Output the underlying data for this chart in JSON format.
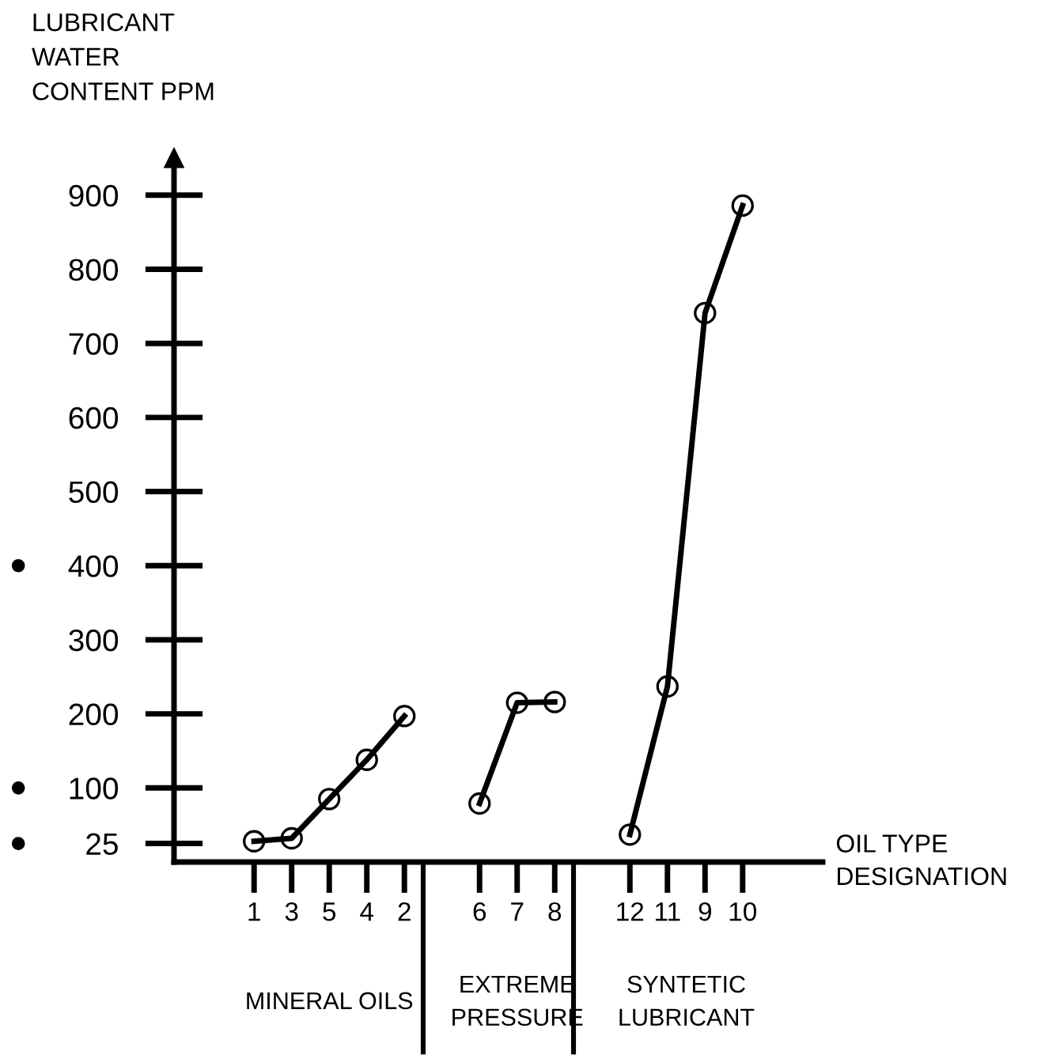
{
  "chart_data": {
    "type": "line",
    "ylabel": "LUBRICANT\nWATER\nCONTENT PPM",
    "xlabel": "OIL TYPE\nDESIGNATION",
    "categories": [
      "1",
      "3",
      "5",
      "4",
      "2",
      null,
      "6",
      "7",
      "8",
      null,
      "12",
      "11",
      "9",
      "10"
    ],
    "ylim": [
      0,
      950
    ],
    "yticks": [
      25,
      100,
      200,
      300,
      400,
      500,
      600,
      700,
      800,
      900
    ],
    "marker": "circle",
    "line_style": "solid",
    "grid": false,
    "legend": false,
    "series": [
      {
        "color": "#000000",
        "values": [
          28,
          32,
          85,
          138,
          197,
          null,
          null,
          null,
          null,
          null,
          null,
          null,
          null,
          null
        ]
      },
      {
        "color": "#000000",
        "values": [
          null,
          null,
          null,
          null,
          null,
          null,
          79,
          215,
          216,
          null,
          null,
          null,
          null,
          null
        ]
      },
      {
        "color": "#000000",
        "values": [
          null,
          null,
          null,
          null,
          null,
          null,
          null,
          null,
          null,
          null,
          37,
          237,
          741,
          886
        ]
      }
    ],
    "annotations": [
      "MINERAL OILS",
      "EXTREME\nPRESSURE",
      "SYNTETIC\nLUBRICANT"
    ]
  }
}
